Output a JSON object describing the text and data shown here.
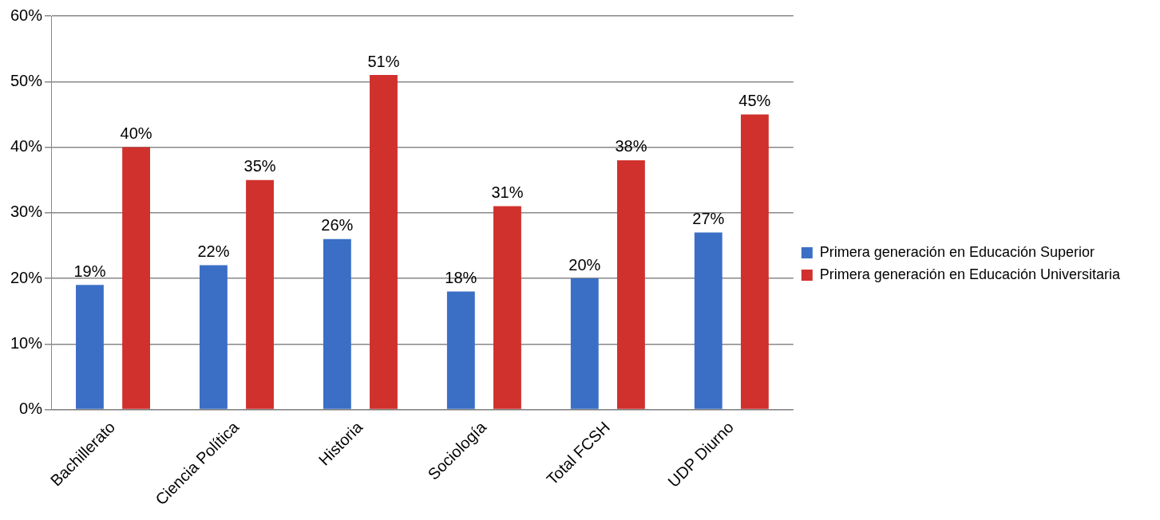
{
  "chart_data": {
    "type": "bar",
    "categories": [
      "Bachillerato",
      "Ciencia Política",
      "Historia",
      "Sociología",
      "Total FCSH",
      "UDP Diurno"
    ],
    "series": [
      {
        "name": "Primera generación en Educación Superior",
        "color": "#3b6fc6",
        "values": [
          19,
          22,
          26,
          18,
          20,
          27
        ],
        "value_labels": [
          "19%",
          "22%",
          "26%",
          "18%",
          "20%",
          "27%"
        ]
      },
      {
        "name": "Primera generación en Educación Universitaria",
        "color": "#d0312d",
        "values": [
          40,
          35,
          51,
          31,
          38,
          45
        ],
        "value_labels": [
          "40%",
          "35%",
          "51%",
          "31%",
          "38%",
          "45%"
        ]
      }
    ],
    "ylim": [
      0,
      60
    ],
    "yticks": [
      {
        "value": 0,
        "label": "0%"
      },
      {
        "value": 10,
        "label": "10%"
      },
      {
        "value": 20,
        "label": "20%"
      },
      {
        "value": 30,
        "label": "30%"
      },
      {
        "value": 40,
        "label": "40%"
      },
      {
        "value": 50,
        "label": "50%"
      },
      {
        "value": 60,
        "label": "60%"
      }
    ],
    "grid": "y",
    "legend": "right"
  }
}
